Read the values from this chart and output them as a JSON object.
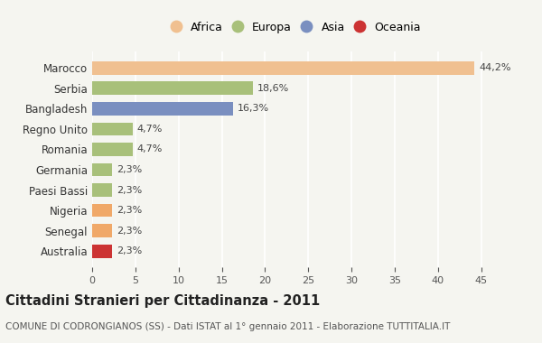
{
  "categories": [
    "Australia",
    "Senegal",
    "Nigeria",
    "Paesi Bassi",
    "Germania",
    "Romania",
    "Regno Unito",
    "Bangladesh",
    "Serbia",
    "Marocco"
  ],
  "values": [
    2.3,
    2.3,
    2.3,
    2.3,
    2.3,
    4.7,
    4.7,
    16.3,
    18.6,
    44.2
  ],
  "labels": [
    "2,3%",
    "2,3%",
    "2,3%",
    "2,3%",
    "2,3%",
    "4,7%",
    "4,7%",
    "16,3%",
    "18,6%",
    "44,2%"
  ],
  "colors": [
    "#cc3333",
    "#f0a868",
    "#f0a868",
    "#a8c07a",
    "#a8c07a",
    "#a8c07a",
    "#a8c07a",
    "#7a8fc0",
    "#a8c07a",
    "#f0c090"
  ],
  "legend_items": [
    {
      "label": "Africa",
      "color": "#f0c090"
    },
    {
      "label": "Europa",
      "color": "#a8c07a"
    },
    {
      "label": "Asia",
      "color": "#7a8fc0"
    },
    {
      "label": "Oceania",
      "color": "#cc3333"
    }
  ],
  "xlim": [
    0,
    47
  ],
  "xticks": [
    0,
    5,
    10,
    15,
    20,
    25,
    30,
    35,
    40,
    45
  ],
  "title": "Cittadini Stranieri per Cittadinanza - 2011",
  "subtitle": "COMUNE DI CODRONGIANOS (SS) - Dati ISTAT al 1° gennaio 2011 - Elaborazione TUTTITALIA.IT",
  "background_color": "#f5f5f0",
  "bar_height": 0.65
}
